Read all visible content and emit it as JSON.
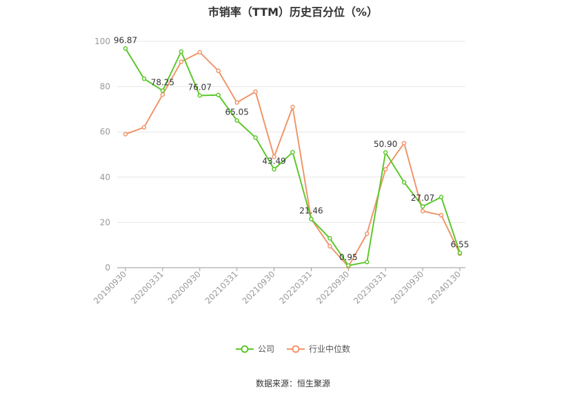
{
  "title": "市销率（TTM）历史百分位（%）",
  "source": "数据来源：恒生聚源",
  "chart_data": {
    "type": "line",
    "x": [
      "20190930",
      "20191231",
      "20200331",
      "20200630",
      "20200930",
      "20201231",
      "20210331",
      "20210630",
      "20210930",
      "20211231",
      "20220331",
      "20220630",
      "20220930",
      "20221231",
      "20230331",
      "20230630",
      "20230930",
      "20231231",
      "20240130"
    ],
    "x_tick_labels": [
      "20190930",
      "20200331",
      "20200930",
      "20210331",
      "20210930",
      "20220331",
      "20220930",
      "20230331",
      "20230930",
      "20240130"
    ],
    "y_ticks": [
      "0",
      "20",
      "40",
      "60",
      "80",
      "100"
    ],
    "ylim": [
      0,
      100
    ],
    "grid": true,
    "legend_position": "bottom",
    "series": [
      {
        "name": "公司",
        "color": "#5cc72a",
        "values": [
          96.87,
          83.5,
          78.25,
          95.5,
          76.07,
          76.3,
          65.05,
          57.5,
          43.49,
          51.0,
          21.46,
          13.0,
          0.95,
          2.5,
          50.9,
          37.7,
          27.07,
          31.2,
          6.55
        ],
        "data_labels": {
          "0": "96.87",
          "2": "78.25",
          "4": "76.07",
          "6": "65.05",
          "8": "43.49",
          "10": "21.46",
          "12": "0.95",
          "14": "50.90",
          "16": "27.07",
          "18": "6.55"
        }
      },
      {
        "name": "行业中位数",
        "color": "#f0956a",
        "values": [
          59.0,
          62.0,
          76.5,
          91.0,
          95.2,
          87.0,
          73.0,
          77.8,
          49.0,
          71.0,
          21.5,
          9.5,
          0.5,
          15.0,
          43.5,
          55.0,
          25.0,
          23.2,
          6.2
        ]
      }
    ]
  }
}
